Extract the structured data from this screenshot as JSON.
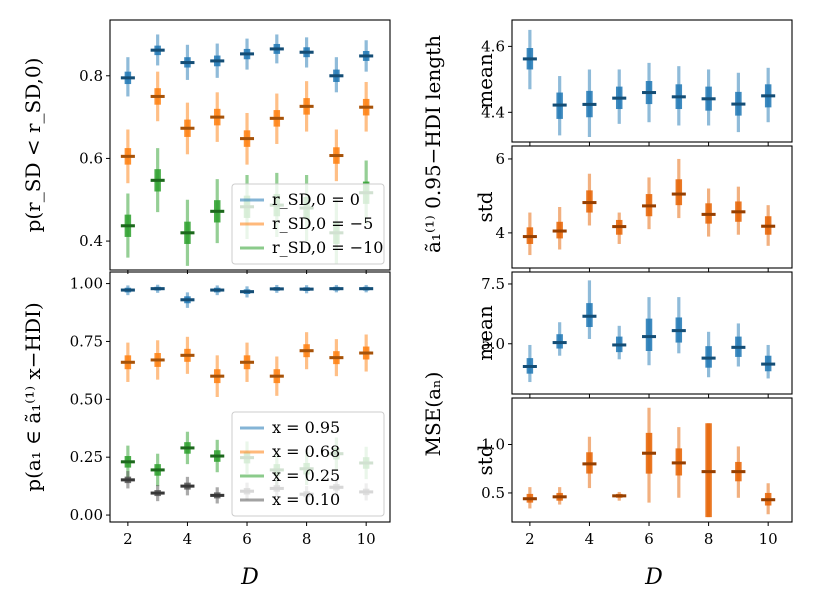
{
  "figure": {
    "xlabel_left": "D",
    "xlabel_right": "D",
    "right_top_group_label": "ã₁⁽¹⁾ 0.95−HDI length",
    "right_bottom_group_label": "MSE(aₙ)"
  },
  "chart_data": [
    {
      "id": "top-left",
      "type": "scatter",
      "ylabel": "p(r_SD < r_SD,0)",
      "xlim": [
        1.4,
        10.8
      ],
      "ylim": [
        0.33,
        0.935
      ],
      "xticks": [
        2,
        4,
        6,
        8,
        10
      ],
      "xtick_labels": [
        "",
        "",
        "",
        "",
        ""
      ],
      "yticks": [
        0.4,
        0.6,
        0.8
      ],
      "ytick_labels": [
        "0.4",
        "0.6",
        "0.8"
      ],
      "x": [
        2,
        3,
        4,
        5,
        6,
        7,
        8,
        9,
        10
      ],
      "legend": {
        "position": "lower-right",
        "entries": [
          "r_SD,0 = 0",
          "r_SD,0 = −5",
          "r_SD,0 = −10"
        ]
      },
      "series": [
        {
          "name": "r_SD,0 = 0",
          "color": "#1f77b4",
          "center": [
            0.795,
            0.862,
            0.832,
            0.836,
            0.853,
            0.865,
            0.857,
            0.8,
            0.848
          ],
          "low95": [
            0.75,
            0.825,
            0.79,
            0.795,
            0.815,
            0.83,
            0.82,
            0.76,
            0.81
          ],
          "high95": [
            0.845,
            0.9,
            0.875,
            0.878,
            0.89,
            0.9,
            0.893,
            0.845,
            0.886
          ],
          "low50": [
            0.78,
            0.85,
            0.82,
            0.823,
            0.84,
            0.853,
            0.845,
            0.785,
            0.836
          ],
          "high50": [
            0.81,
            0.873,
            0.845,
            0.849,
            0.865,
            0.877,
            0.869,
            0.815,
            0.86
          ]
        },
        {
          "name": "r_SD,0 = −5",
          "color": "#ff7f0e",
          "center": [
            0.605,
            0.75,
            0.673,
            0.7,
            0.648,
            0.697,
            0.726,
            0.607,
            0.724
          ],
          "low95": [
            0.54,
            0.69,
            0.61,
            0.64,
            0.585,
            0.635,
            0.665,
            0.545,
            0.665
          ],
          "high95": [
            0.67,
            0.81,
            0.735,
            0.76,
            0.71,
            0.757,
            0.787,
            0.67,
            0.785
          ],
          "low50": [
            0.585,
            0.73,
            0.652,
            0.68,
            0.628,
            0.677,
            0.706,
            0.587,
            0.704
          ],
          "high50": [
            0.625,
            0.77,
            0.694,
            0.72,
            0.668,
            0.717,
            0.746,
            0.627,
            0.744
          ]
        },
        {
          "name": "r_SD,0 = −10",
          "color": "#2ca02c",
          "center": [
            0.437,
            0.547,
            0.42,
            0.472,
            0.483,
            0.487,
            0.48,
            0.42,
            0.517
          ],
          "low95": [
            0.36,
            0.47,
            0.34,
            0.395,
            0.405,
            0.41,
            0.4,
            0.345,
            0.44
          ],
          "high95": [
            0.515,
            0.625,
            0.5,
            0.55,
            0.56,
            0.565,
            0.56,
            0.5,
            0.595
          ],
          "low50": [
            0.41,
            0.52,
            0.393,
            0.445,
            0.456,
            0.46,
            0.453,
            0.393,
            0.49
          ],
          "high50": [
            0.464,
            0.574,
            0.447,
            0.499,
            0.51,
            0.514,
            0.507,
            0.447,
            0.544
          ]
        }
      ]
    },
    {
      "id": "bottom-left",
      "type": "scatter",
      "ylabel": "p(a₁ ∈ ã₁⁽¹⁾ x−HDI)",
      "xlim": [
        1.4,
        10.8
      ],
      "ylim": [
        -0.03,
        1.05
      ],
      "xticks": [
        2,
        4,
        6,
        8,
        10
      ],
      "xtick_labels": [
        "2",
        "4",
        "6",
        "8",
        "10"
      ],
      "yticks": [
        0.0,
        0.25,
        0.5,
        0.75,
        1.0
      ],
      "ytick_labels": [
        "0.00",
        "0.25",
        "0.50",
        "0.75",
        "1.00"
      ],
      "x": [
        2,
        3,
        4,
        5,
        6,
        7,
        8,
        9,
        10
      ],
      "legend": {
        "position": "lower-right",
        "entries": [
          "x = 0.95",
          "x = 0.68",
          "x = 0.25",
          "x = 0.10"
        ]
      },
      "series": [
        {
          "name": "x = 0.95",
          "color": "#1f77b4",
          "center": [
            0.972,
            0.978,
            0.93,
            0.972,
            0.965,
            0.977,
            0.976,
            0.978,
            0.978
          ],
          "low95": [
            0.95,
            0.96,
            0.895,
            0.95,
            0.94,
            0.96,
            0.958,
            0.962,
            0.962
          ],
          "high95": [
            0.992,
            0.995,
            0.962,
            0.992,
            0.988,
            0.994,
            0.993,
            0.994,
            0.994
          ],
          "low50": [
            0.962,
            0.97,
            0.915,
            0.962,
            0.955,
            0.969,
            0.968,
            0.97,
            0.97
          ],
          "high50": [
            0.982,
            0.986,
            0.945,
            0.982,
            0.975,
            0.985,
            0.984,
            0.986,
            0.986
          ]
        },
        {
          "name": "x = 0.68",
          "color": "#ff7f0e",
          "center": [
            0.66,
            0.67,
            0.69,
            0.6,
            0.66,
            0.6,
            0.71,
            0.68,
            0.7
          ],
          "low95": [
            0.575,
            0.585,
            0.61,
            0.51,
            0.575,
            0.515,
            0.63,
            0.6,
            0.62
          ],
          "high95": [
            0.745,
            0.755,
            0.77,
            0.69,
            0.745,
            0.685,
            0.79,
            0.76,
            0.78
          ],
          "low50": [
            0.63,
            0.64,
            0.662,
            0.57,
            0.63,
            0.57,
            0.682,
            0.652,
            0.672
          ],
          "high50": [
            0.69,
            0.7,
            0.718,
            0.63,
            0.69,
            0.63,
            0.738,
            0.708,
            0.728
          ]
        },
        {
          "name": "x = 0.25",
          "color": "#2ca02c",
          "center": [
            0.23,
            0.195,
            0.29,
            0.255,
            0.248,
            0.195,
            0.2,
            0.265,
            0.225
          ],
          "low95": [
            0.16,
            0.125,
            0.22,
            0.185,
            0.178,
            0.125,
            0.13,
            0.195,
            0.155
          ],
          "high95": [
            0.3,
            0.265,
            0.36,
            0.325,
            0.318,
            0.265,
            0.27,
            0.335,
            0.295
          ],
          "low50": [
            0.205,
            0.17,
            0.265,
            0.23,
            0.223,
            0.17,
            0.175,
            0.24,
            0.2
          ],
          "high50": [
            0.255,
            0.22,
            0.315,
            0.28,
            0.273,
            0.22,
            0.225,
            0.29,
            0.25
          ]
        },
        {
          "name": "x = 0.10",
          "color": "#555555",
          "center": [
            0.152,
            0.095,
            0.125,
            0.085,
            0.103,
            0.115,
            0.09,
            0.12,
            0.1
          ],
          "low95": [
            0.115,
            0.06,
            0.085,
            0.05,
            0.065,
            0.078,
            0.055,
            0.082,
            0.063
          ],
          "high95": [
            0.19,
            0.13,
            0.165,
            0.12,
            0.14,
            0.152,
            0.125,
            0.158,
            0.137
          ],
          "low50": [
            0.138,
            0.082,
            0.11,
            0.072,
            0.089,
            0.101,
            0.077,
            0.106,
            0.086
          ],
          "high50": [
            0.166,
            0.108,
            0.14,
            0.098,
            0.117,
            0.129,
            0.103,
            0.134,
            0.114
          ]
        }
      ]
    },
    {
      "id": "right-1",
      "type": "scatter",
      "ylabel": "mean",
      "xlim": [
        1.4,
        10.8
      ],
      "ylim": [
        4.31,
        4.68
      ],
      "xticks": [
        2,
        4,
        6,
        8,
        10
      ],
      "xtick_labels": [
        "",
        "",
        "",
        "",
        ""
      ],
      "yticks": [
        4.4,
        4.6
      ],
      "ytick_labels": [
        "4.4",
        "4.6"
      ],
      "x": [
        2,
        3,
        4,
        5,
        6,
        7,
        8,
        9,
        10
      ],
      "series": [
        {
          "name": "HDI length mean",
          "color": "#1f77b4",
          "center": [
            4.562,
            4.422,
            4.424,
            4.443,
            4.46,
            4.447,
            4.441,
            4.425,
            4.45
          ],
          "low95": [
            4.47,
            4.33,
            4.325,
            4.365,
            4.37,
            4.36,
            4.36,
            4.34,
            4.37
          ],
          "high95": [
            4.65,
            4.51,
            4.53,
            4.53,
            4.55,
            4.54,
            4.53,
            4.52,
            4.535
          ],
          "low50": [
            4.53,
            4.38,
            4.385,
            4.41,
            4.425,
            4.41,
            4.405,
            4.39,
            4.415
          ],
          "high50": [
            4.595,
            4.46,
            4.465,
            4.478,
            4.495,
            4.485,
            4.478,
            4.462,
            4.485
          ]
        }
      ]
    },
    {
      "id": "right-2",
      "type": "scatter",
      "ylabel": "std",
      "xlim": [
        1.4,
        10.8
      ],
      "ylim": [
        3.05,
        6.35
      ],
      "xticks": [
        2,
        4,
        6,
        8,
        10
      ],
      "xtick_labels": [
        "",
        "",
        "",
        "",
        ""
      ],
      "yticks": [
        4,
        6
      ],
      "ytick_labels": [
        "4",
        "6"
      ],
      "x": [
        2,
        3,
        4,
        5,
        6,
        7,
        8,
        9,
        10
      ],
      "series": [
        {
          "name": "HDI length std",
          "color": "#e66100",
          "center": [
            3.9,
            4.05,
            4.82,
            4.17,
            4.73,
            5.05,
            4.5,
            4.57,
            4.18
          ],
          "low95": [
            3.4,
            3.55,
            4.2,
            3.7,
            4.1,
            4.4,
            3.9,
            3.95,
            3.65
          ],
          "high95": [
            4.55,
            4.7,
            5.6,
            4.55,
            5.5,
            6.0,
            5.2,
            5.25,
            4.75
          ],
          "low50": [
            3.7,
            3.85,
            4.55,
            3.95,
            4.45,
            4.75,
            4.25,
            4.3,
            3.95
          ],
          "high50": [
            4.15,
            4.3,
            5.15,
            4.35,
            5.05,
            5.45,
            4.8,
            4.85,
            4.45
          ]
        }
      ]
    },
    {
      "id": "right-3",
      "type": "scatter",
      "ylabel": "mean",
      "xlim": [
        1.4,
        10.8
      ],
      "ylim": [
        2.9,
        8.0
      ],
      "xticks": [
        2,
        4,
        6,
        8,
        10
      ],
      "xtick_labels": [
        "",
        "",
        "",
        "",
        ""
      ],
      "yticks": [
        5.0,
        7.5
      ],
      "ytick_labels": [
        "5.0",
        "7.5"
      ],
      "x": [
        2,
        3,
        4,
        5,
        6,
        7,
        8,
        9,
        10
      ],
      "series": [
        {
          "name": "MSE mean",
          "color": "#1f77b4",
          "center": [
            4.05,
            5.05,
            6.15,
            4.95,
            5.3,
            5.55,
            4.4,
            4.85,
            4.15
          ],
          "low95": [
            3.4,
            4.5,
            5.2,
            4.35,
            4.1,
            4.6,
            3.6,
            4.05,
            3.55
          ],
          "high95": [
            4.95,
            5.9,
            7.65,
            5.75,
            6.95,
            6.95,
            5.5,
            5.85,
            4.95
          ],
          "low50": [
            3.75,
            4.8,
            5.7,
            4.65,
            4.7,
            5.05,
            4.0,
            4.45,
            3.85
          ],
          "high50": [
            4.4,
            5.4,
            6.7,
            5.3,
            6.05,
            6.1,
            4.9,
            5.3,
            4.5
          ]
        }
      ]
    },
    {
      "id": "right-4",
      "type": "scatter",
      "ylabel": "std",
      "xlim": [
        1.4,
        10.8
      ],
      "ylim": [
        0.2,
        1.48
      ],
      "xticks": [
        2,
        4,
        6,
        8,
        10
      ],
      "xtick_labels": [
        "2",
        "4",
        "6",
        "8",
        "10"
      ],
      "yticks": [
        0.5,
        1.0
      ],
      "ytick_labels": [
        "0.5",
        "1.0"
      ],
      "x": [
        2,
        3,
        4,
        5,
        6,
        7,
        8,
        9,
        10
      ],
      "series": [
        {
          "name": "MSE std",
          "color": "#e66100",
          "center": [
            0.44,
            0.46,
            0.8,
            0.47,
            0.91,
            0.81,
            0.72,
            0.72,
            0.43
          ],
          "low95": [
            0.34,
            0.38,
            0.55,
            0.42,
            0.4,
            0.45,
            0.25,
            0.45,
            0.28
          ],
          "high95": [
            0.56,
            0.56,
            1.08,
            0.51,
            1.38,
            1.18,
            1.22,
            0.98,
            0.6
          ],
          "low50": [
            0.4,
            0.42,
            0.7,
            0.45,
            0.7,
            0.68,
            0.25,
            0.62,
            0.37
          ],
          "high50": [
            0.49,
            0.5,
            0.92,
            0.49,
            1.12,
            0.96,
            1.22,
            0.82,
            0.5
          ]
        }
      ]
    }
  ]
}
